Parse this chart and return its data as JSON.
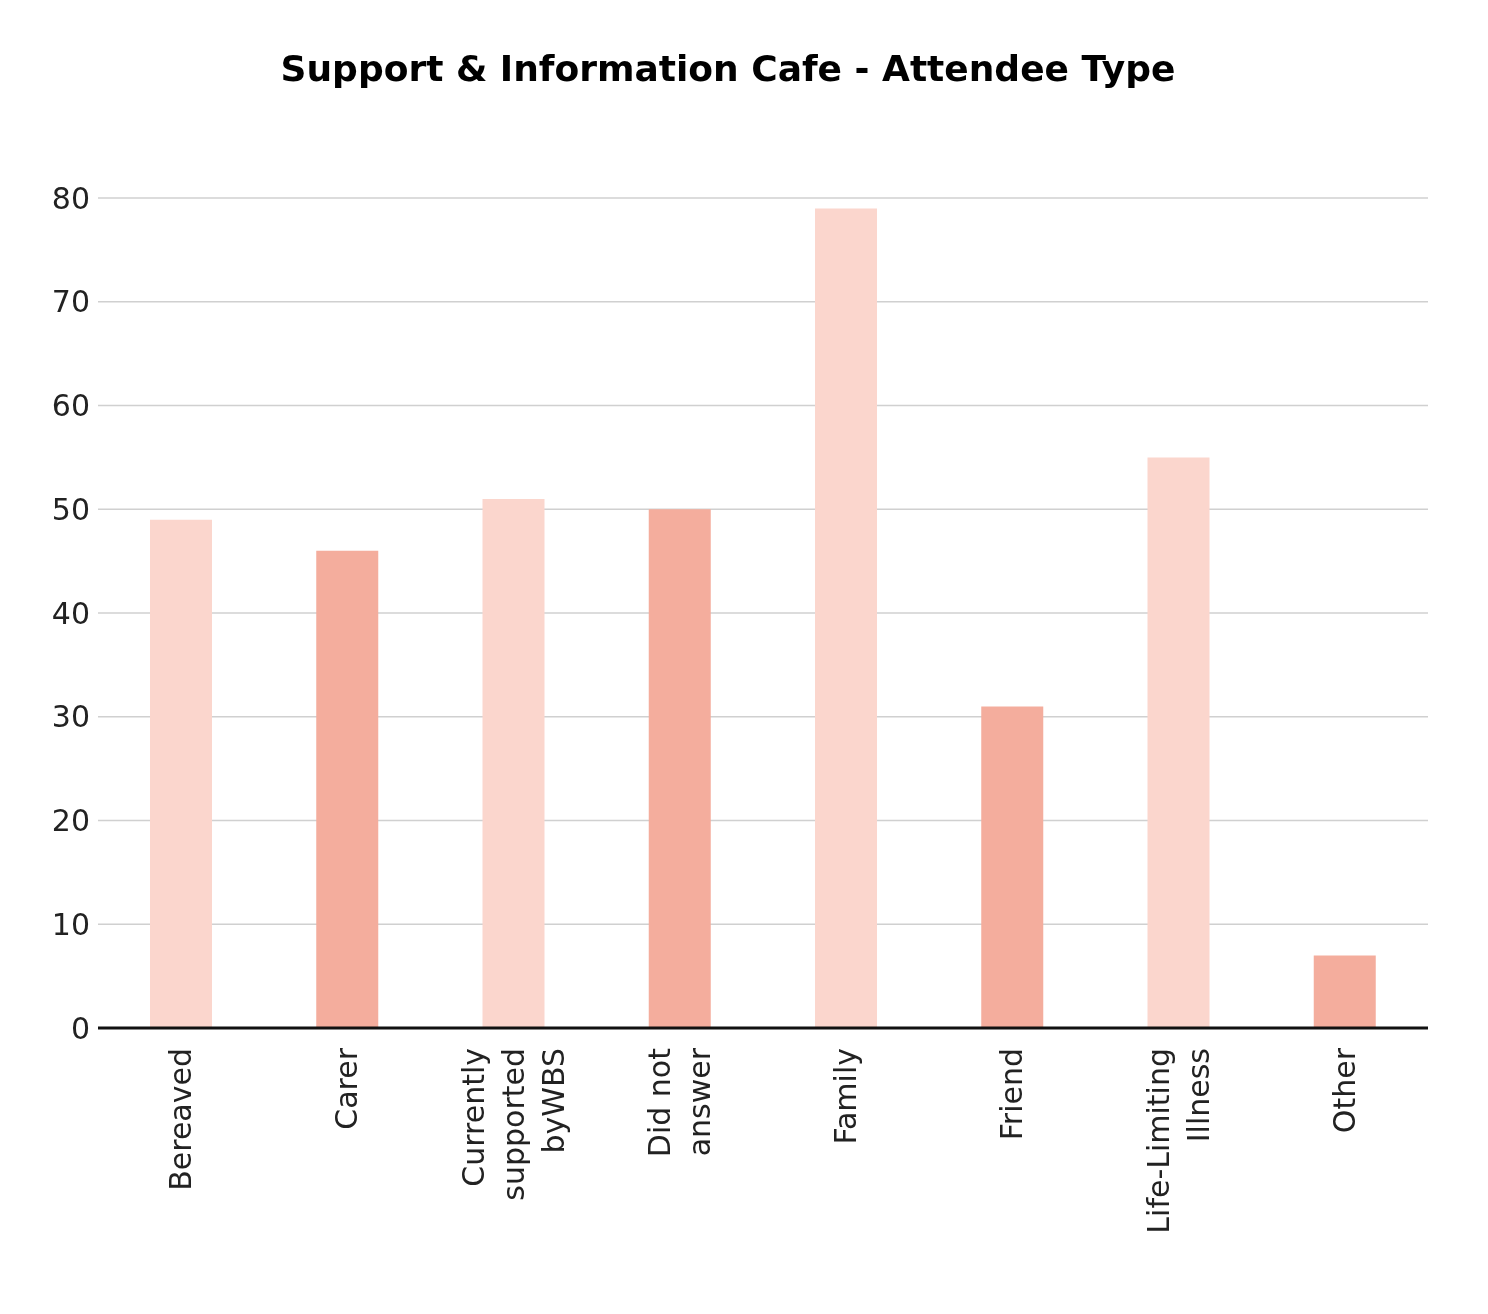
{
  "chart_data": {
    "type": "bar",
    "title": "Support & Information Cafe - Attendee Type",
    "categories": [
      "Bereaved",
      "Carer",
      "Currently supported byWBS",
      "Did not answer",
      "Family",
      "Friend",
      "Life-Limiting Illness",
      "Other"
    ],
    "values": [
      49,
      46,
      51,
      50,
      79,
      31,
      55,
      7
    ],
    "colors": [
      "#fbd6cd",
      "#f4ad9d",
      "#fbd6cd",
      "#f4ad9d",
      "#fbd6cd",
      "#f4ad9d",
      "#fbd6cd",
      "#f4ad9d"
    ],
    "ylim": [
      0,
      80
    ],
    "yticks": [
      0,
      10,
      20,
      30,
      40,
      50,
      60,
      70,
      80
    ],
    "grid": "y",
    "legend": false
  }
}
